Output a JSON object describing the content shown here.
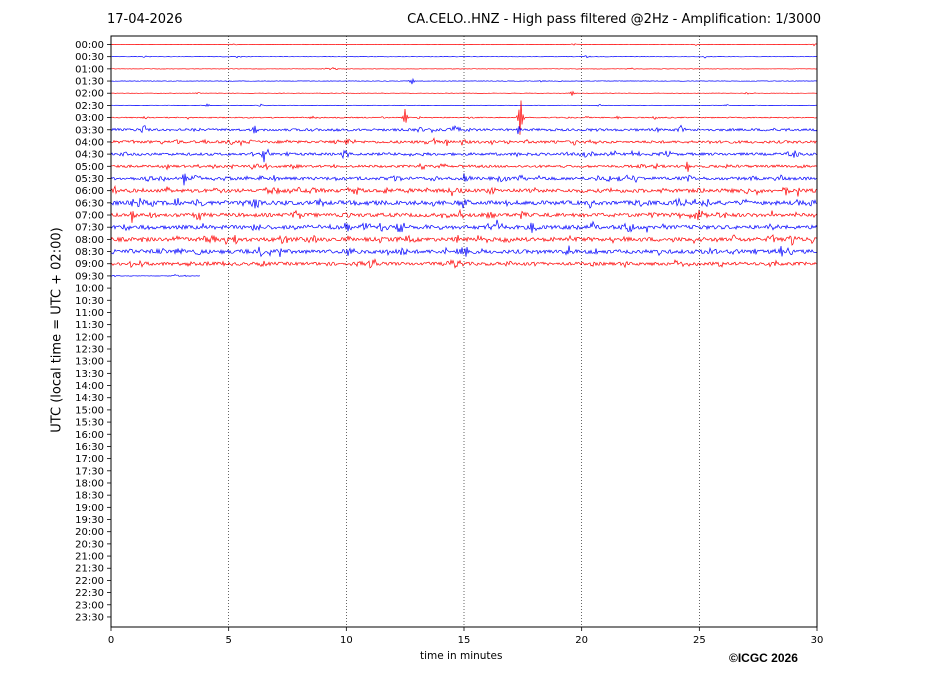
{
  "date": "17-04-2026",
  "title": "CA.CELO..HNZ - High pass filtered @2Hz - Amplification: 1/3000",
  "copyright": "©ICGC 2026",
  "colors": {
    "odd_trace": "#ff0000",
    "even_trace": "#0000ff",
    "grid": "#000000",
    "frame": "#000000"
  },
  "chart_data": {
    "type": "line",
    "xlabel": "time in minutes",
    "ylabel": "UTC (local time = UTC + 02:00)",
    "xlim": [
      0,
      30
    ],
    "xticks": [
      "0",
      "5",
      "10",
      "15",
      "20",
      "25",
      "30"
    ],
    "x_grid_minutes": [
      5,
      10,
      15,
      20,
      25
    ],
    "rows": [
      "00:00",
      "00:30",
      "01:00",
      "01:30",
      "02:00",
      "02:30",
      "03:00",
      "03:30",
      "04:00",
      "04:30",
      "05:00",
      "05:30",
      "06:00",
      "06:30",
      "07:00",
      "07:30",
      "08:00",
      "08:30",
      "09:00",
      "09:30",
      "10:00",
      "10:30",
      "11:00",
      "11:30",
      "12:00",
      "12:30",
      "13:00",
      "13:30",
      "14:00",
      "14:30",
      "15:00",
      "15:30",
      "16:00",
      "16:30",
      "17:00",
      "17:30",
      "18:00",
      "18:30",
      "19:00",
      "19:30",
      "20:00",
      "20:30",
      "21:00",
      "21:30",
      "22:00",
      "22:30",
      "23:00",
      "23:30"
    ],
    "trace_colors": [
      "red",
      "blue",
      "red",
      "blue",
      "red",
      "blue",
      "red",
      "blue",
      "red",
      "blue",
      "red",
      "blue",
      "red",
      "blue",
      "red",
      "blue",
      "red",
      "blue",
      "red",
      "blue"
    ],
    "trace_end_minutes": [
      30,
      30,
      30,
      30,
      30,
      30,
      30,
      30,
      30,
      30,
      30,
      30,
      30,
      30,
      30,
      30,
      30,
      30,
      30,
      3.8
    ],
    "noise_level": [
      0.2,
      0.2,
      0.2,
      0.25,
      0.2,
      0.2,
      0.5,
      1.2,
      1.3,
      1.3,
      1.2,
      1.5,
      1.8,
      2.0,
      1.8,
      1.9,
      2.0,
      1.9,
      1.6,
      0.2
    ],
    "events": [
      {
        "row": 3,
        "minute": 12.8,
        "amp": 4
      },
      {
        "row": 4,
        "minute": 19.6,
        "amp": 3
      },
      {
        "row": 6,
        "minute": 12.5,
        "amp": 10
      },
      {
        "row": 6,
        "minute": 17.4,
        "amp": 26
      },
      {
        "row": 7,
        "minute": 6.1,
        "amp": 7
      },
      {
        "row": 7,
        "minute": 17.3,
        "amp": 6
      },
      {
        "row": 9,
        "minute": 6.5,
        "amp": 8
      },
      {
        "row": 11,
        "minute": 3.1,
        "amp": 8
      },
      {
        "row": 10,
        "minute": 24.5,
        "amp": 7
      },
      {
        "row": 13,
        "minute": 0.9,
        "amp": 6
      },
      {
        "row": 14,
        "minute": 0.9,
        "amp": 9
      },
      {
        "row": 15,
        "minute": 17.9,
        "amp": 9
      },
      {
        "row": 17,
        "minute": 15.1,
        "amp": 8
      },
      {
        "row": 17,
        "minute": 28.5,
        "amp": 6
      }
    ]
  }
}
